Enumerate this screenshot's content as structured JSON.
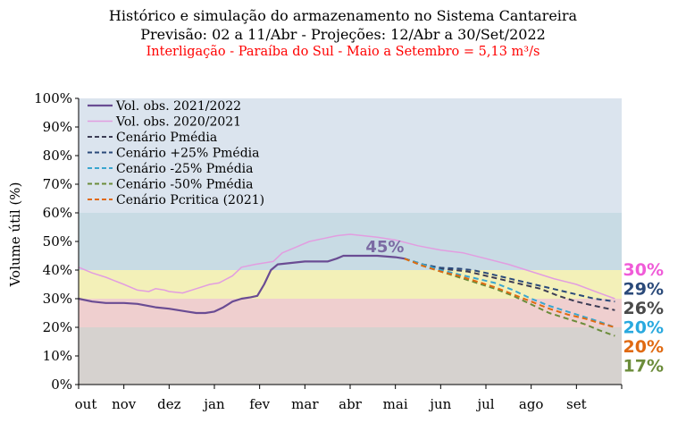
{
  "title_line1": "Histórico e simulação do armazenamento no Sistema Cantareira",
  "title_line2": "Previsão: 02 a 11/Abr - Projeções: 12/Abr a 30/Set/2022",
  "title_line3": "Interligação - Paraíba do Sul - Maio a Setembro = 5,13 m³/s",
  "chart_data": {
    "type": "line",
    "ylabel": "Volume útil (%)",
    "xlabel": "",
    "ylim": [
      0,
      100
    ],
    "y_ticks": [
      "0%",
      "10%",
      "20%",
      "30%",
      "40%",
      "50%",
      "60%",
      "70%",
      "80%",
      "90%",
      "100%"
    ],
    "x_ticks": [
      "out",
      "nov",
      "dez",
      "jan",
      "fev",
      "mar",
      "abr",
      "mai",
      "jun",
      "jul",
      "ago",
      "set"
    ],
    "grid": false,
    "legend_position": "top-left",
    "bands": [
      {
        "from": 0,
        "to": 20,
        "color": "#d6d2cf"
      },
      {
        "from": 20,
        "to": 30,
        "color": "#efcfcf"
      },
      {
        "from": 30,
        "to": 40,
        "color": "#f3f0b8"
      },
      {
        "from": 40,
        "to": 60,
        "color": "#c8dbe4"
      },
      {
        "from": 60,
        "to": 100,
        "color": "#dbe4ee"
      }
    ],
    "annotation": {
      "text": "45%",
      "x": 6.5,
      "y": 45
    },
    "series": [
      {
        "name": "Vol. obs. 2021/2022",
        "color": "#6a4c93",
        "dash": "solid",
        "width": 2.2,
        "points": [
          [
            0,
            30
          ],
          [
            0.3,
            29
          ],
          [
            0.6,
            28.5
          ],
          [
            1,
            28.5
          ],
          [
            1.3,
            28.2
          ],
          [
            1.7,
            27
          ],
          [
            2,
            26.5
          ],
          [
            2.2,
            26
          ],
          [
            2.4,
            25.5
          ],
          [
            2.6,
            25
          ],
          [
            2.8,
            25
          ],
          [
            3,
            25.5
          ],
          [
            3.2,
            27
          ],
          [
            3.4,
            29
          ],
          [
            3.6,
            30
          ],
          [
            3.8,
            30.5
          ],
          [
            3.95,
            31
          ],
          [
            4.1,
            35
          ],
          [
            4.25,
            40
          ],
          [
            4.4,
            42
          ],
          [
            4.7,
            42.5
          ],
          [
            5,
            43
          ],
          [
            5.3,
            43
          ],
          [
            5.5,
            43
          ],
          [
            5.7,
            44
          ],
          [
            5.85,
            45
          ],
          [
            6.2,
            45
          ],
          [
            6.6,
            45
          ],
          [
            7,
            44.5
          ],
          [
            7.2,
            44
          ]
        ]
      },
      {
        "name": "Vol. obs. 2020/2021",
        "color": "#e29de0",
        "dash": "solid",
        "width": 1.5,
        "points": [
          [
            0,
            41
          ],
          [
            0.3,
            39
          ],
          [
            0.6,
            37.5
          ],
          [
            1,
            35
          ],
          [
            1.3,
            33
          ],
          [
            1.55,
            32.5
          ],
          [
            1.7,
            33.5
          ],
          [
            1.9,
            33
          ],
          [
            2,
            32.5
          ],
          [
            2.3,
            32
          ],
          [
            2.6,
            33.5
          ],
          [
            2.9,
            35
          ],
          [
            3.1,
            35.5
          ],
          [
            3.4,
            38
          ],
          [
            3.6,
            41
          ],
          [
            3.9,
            42
          ],
          [
            4.1,
            42.5
          ],
          [
            4.3,
            43
          ],
          [
            4.5,
            46
          ],
          [
            4.8,
            48
          ],
          [
            5.1,
            50
          ],
          [
            5.4,
            51
          ],
          [
            5.7,
            52
          ],
          [
            6,
            52.5
          ],
          [
            6.3,
            52
          ],
          [
            6.6,
            51.5
          ],
          [
            7,
            50.5
          ],
          [
            7.5,
            48.5
          ],
          [
            8,
            47
          ],
          [
            8.5,
            46
          ],
          [
            9,
            44
          ],
          [
            9.5,
            42
          ],
          [
            10,
            39.5
          ],
          [
            10.5,
            37
          ],
          [
            11,
            35
          ],
          [
            11.5,
            32
          ],
          [
            11.85,
            30
          ]
        ]
      },
      {
        "name": "Cenário Pmédia",
        "color": "#3d3d55",
        "dash": "6,4",
        "width": 2,
        "points": [
          [
            7.2,
            44
          ],
          [
            7.6,
            42
          ],
          [
            8,
            40.5
          ],
          [
            8.3,
            40
          ],
          [
            8.6,
            39.5
          ],
          [
            9,
            38
          ],
          [
            9.4,
            36.5
          ],
          [
            9.8,
            35
          ],
          [
            10.2,
            33.5
          ],
          [
            10.6,
            31
          ],
          [
            11,
            29
          ],
          [
            11.4,
            27.5
          ],
          [
            11.85,
            26
          ]
        ]
      },
      {
        "name": "Cenário +25% Pmédia",
        "color": "#2b4a7a",
        "dash": "6,4",
        "width": 2,
        "points": [
          [
            7.2,
            44
          ],
          [
            7.6,
            42
          ],
          [
            8,
            40.8
          ],
          [
            8.4,
            40.5
          ],
          [
            8.7,
            40
          ],
          [
            9,
            39
          ],
          [
            9.4,
            37.5
          ],
          [
            9.8,
            36
          ],
          [
            10.2,
            34.5
          ],
          [
            10.6,
            33
          ],
          [
            11,
            31.5
          ],
          [
            11.4,
            30
          ],
          [
            11.85,
            29
          ]
        ]
      },
      {
        "name": "Cenário -25% Pmédia",
        "color": "#3aa6cf",
        "dash": "6,4",
        "width": 2,
        "points": [
          [
            7.2,
            44
          ],
          [
            7.6,
            42
          ],
          [
            8,
            40
          ],
          [
            8.4,
            38.5
          ],
          [
            8.8,
            37
          ],
          [
            9.2,
            35.5
          ],
          [
            9.6,
            33
          ],
          [
            10,
            30
          ],
          [
            10.4,
            27.5
          ],
          [
            10.8,
            25.5
          ],
          [
            11.2,
            23.5
          ],
          [
            11.5,
            22
          ],
          [
            11.85,
            20
          ]
        ]
      },
      {
        "name": "Cenário -50% Pmédia",
        "color": "#6b8c3a",
        "dash": "6,4",
        "width": 2,
        "points": [
          [
            7.2,
            44
          ],
          [
            7.6,
            41.5
          ],
          [
            8,
            39.5
          ],
          [
            8.4,
            37.5
          ],
          [
            8.8,
            35.5
          ],
          [
            9.2,
            33.5
          ],
          [
            9.6,
            31
          ],
          [
            10,
            28
          ],
          [
            10.4,
            25
          ],
          [
            10.8,
            23
          ],
          [
            11.2,
            21
          ],
          [
            11.5,
            19
          ],
          [
            11.85,
            17
          ]
        ]
      },
      {
        "name": "Cenário Pcritica (2021)",
        "color": "#e06a12",
        "dash": "6,4",
        "width": 2,
        "points": [
          [
            7.2,
            44
          ],
          [
            7.6,
            41.5
          ],
          [
            8,
            39.5
          ],
          [
            8.4,
            38
          ],
          [
            8.8,
            36
          ],
          [
            9.2,
            34
          ],
          [
            9.6,
            31.5
          ],
          [
            10,
            29
          ],
          [
            10.4,
            26.5
          ],
          [
            10.8,
            24.5
          ],
          [
            11.2,
            23
          ],
          [
            11.5,
            21.5
          ],
          [
            11.85,
            20
          ]
        ]
      }
    ],
    "end_labels": [
      {
        "text": "30%",
        "color": "#f05bd8"
      },
      {
        "text": "29%",
        "color": "#2b4a7a"
      },
      {
        "text": "26%",
        "color": "#4a4a4a"
      },
      {
        "text": "20%",
        "color": "#29a9df"
      },
      {
        "text": "20%",
        "color": "#e06a12"
      },
      {
        "text": "17%",
        "color": "#6b8c3a"
      }
    ]
  }
}
